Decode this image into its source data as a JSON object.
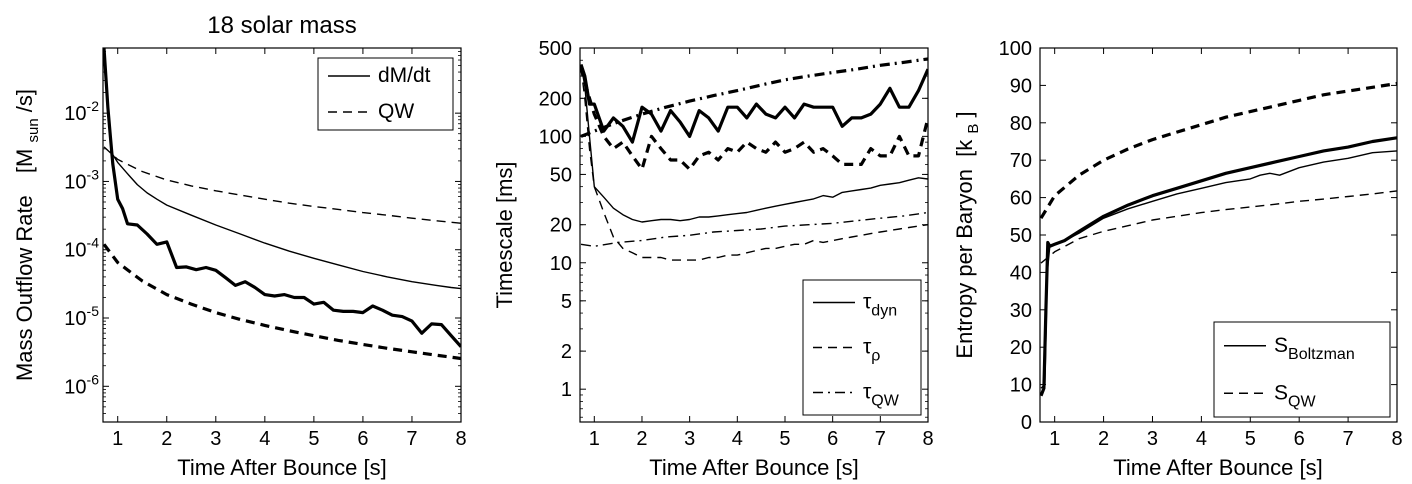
{
  "chart_data": [
    {
      "type": "line",
      "title": "18 solar mass",
      "xlabel": "Time After Bounce [s]",
      "ylabel": "Mass Outflow Rate",
      "ylabel_unit": "[M",
      "ylabel_unit_sub": "sun",
      "ylabel_unit_tail": "/s]",
      "yscale": "log",
      "xlim": [
        0.7,
        8
      ],
      "ylim": [
        3e-07,
        0.09
      ],
      "xticks": [
        1,
        2,
        3,
        4,
        5,
        6,
        7,
        8
      ],
      "xtick_labels": [
        "1",
        "2",
        "3",
        "4",
        "5",
        "6",
        "7",
        "8"
      ],
      "yticks": [
        1e-06,
        1e-05,
        0.0001,
        0.001,
        0.01
      ],
      "ytick_labels": [
        {
          "base": "10",
          "exp": "-6"
        },
        {
          "base": "10",
          "exp": "-5"
        },
        {
          "base": "10",
          "exp": "-4"
        },
        {
          "base": "10",
          "exp": "-3"
        },
        {
          "base": "10",
          "exp": "-2"
        }
      ],
      "legend": {
        "position": "top-right",
        "entries": [
          {
            "label": "dM/dt",
            "style": "solid"
          },
          {
            "label": "QW",
            "style": "dashed"
          }
        ]
      },
      "series": [
        {
          "name": "dM/dt (thick)",
          "style": "solid",
          "weight": "thick",
          "x": [
            0.72,
            0.8,
            0.85,
            0.9,
            1.0,
            1.1,
            1.2,
            1.4,
            1.6,
            1.8,
            2.0,
            2.2,
            2.4,
            2.6,
            2.8,
            3.0,
            3.2,
            3.4,
            3.6,
            3.8,
            4.0,
            4.2,
            4.4,
            4.6,
            4.8,
            5.0,
            5.2,
            5.4,
            5.6,
            5.8,
            6.0,
            6.2,
            6.4,
            6.6,
            6.8,
            7.0,
            7.2,
            7.4,
            7.6,
            7.8,
            8.0
          ],
          "y": [
            0.09,
            0.012,
            0.0045,
            0.0018,
            0.00055,
            0.0004,
            0.00024,
            0.00023,
            0.00017,
            0.00012,
            0.00013,
            5.5e-05,
            5.6e-05,
            5.1e-05,
            5.5e-05,
            5e-05,
            3.9e-05,
            3e-05,
            3.4e-05,
            2.8e-05,
            2.2e-05,
            2.1e-05,
            2.2e-05,
            2e-05,
            2e-05,
            1.6e-05,
            1.7e-05,
            1.3e-05,
            1.25e-05,
            1.25e-05,
            1.2e-05,
            1.5e-05,
            1.3e-05,
            1.1e-05,
            1.05e-05,
            9e-06,
            6e-06,
            8.2e-06,
            8e-06,
            5.5e-06,
            3.8e-06
          ]
        },
        {
          "name": "dM/dt (thin)",
          "style": "solid",
          "weight": "thin",
          "x": [
            0.85,
            1.0,
            1.2,
            1.4,
            1.6,
            1.8,
            2.0,
            2.5,
            3.0,
            3.5,
            4.0,
            4.5,
            5.0,
            5.5,
            6.0,
            6.5,
            7.0,
            7.5,
            7.8,
            8.0
          ],
          "y": [
            0.0028,
            0.0019,
            0.0013,
            0.0009,
            0.00068,
            0.00055,
            0.00045,
            0.00032,
            0.00023,
            0.00017,
            0.000125,
            9.5e-05,
            7.5e-05,
            6e-05,
            4.8e-05,
            4e-05,
            3.4e-05,
            3e-05,
            2.8e-05,
            2.7e-05
          ]
        },
        {
          "name": "QW (thin)",
          "style": "dashed",
          "weight": "thin",
          "x": [
            0.72,
            1.0,
            1.5,
            2.0,
            2.5,
            3.0,
            3.5,
            4.0,
            4.5,
            5.0,
            5.5,
            6.0,
            6.5,
            7.0,
            7.5,
            8.0
          ],
          "y": [
            0.0032,
            0.0021,
            0.0014,
            0.00105,
            0.00086,
            0.00073,
            0.00063,
            0.00055,
            0.00048,
            0.00043,
            0.00039,
            0.00035,
            0.00032,
            0.00029,
            0.000265,
            0.000245
          ]
        },
        {
          "name": "QW (thick)",
          "style": "dashed",
          "weight": "thick",
          "x": [
            0.72,
            1.0,
            1.5,
            2.0,
            2.5,
            3.0,
            3.5,
            4.0,
            4.5,
            5.0,
            5.5,
            6.0,
            6.5,
            7.0,
            7.5,
            8.0
          ],
          "y": [
            0.00012,
            6.5e-05,
            3.5e-05,
            2.2e-05,
            1.6e-05,
            1.2e-05,
            9.5e-06,
            7.8e-06,
            6.5e-06,
            5.5e-06,
            4.7e-06,
            4.1e-06,
            3.6e-06,
            3.2e-06,
            2.85e-06,
            2.55e-06
          ]
        }
      ]
    },
    {
      "type": "line",
      "xlabel": "Time After Bounce [s]",
      "ylabel": "Timescale [ms]",
      "yscale": "log",
      "xlim": [
        0.7,
        8
      ],
      "ylim": [
        0.55,
        500
      ],
      "xticks": [
        1,
        2,
        3,
        4,
        5,
        6,
        7,
        8
      ],
      "xtick_labels": [
        "1",
        "2",
        "3",
        "4",
        "5",
        "6",
        "7",
        "8"
      ],
      "yticks": [
        1,
        2,
        5,
        10,
        20,
        50,
        100,
        200,
        500
      ],
      "ytick_labels": [
        "1",
        "2",
        "5",
        "10",
        "20",
        "50",
        "100",
        "200",
        "500"
      ],
      "legend": {
        "position": "bottom-right",
        "entries": [
          {
            "label": "τ",
            "sub": "dyn",
            "style": "solid"
          },
          {
            "label": "τ",
            "sub": "ρ",
            "style": "dashed"
          },
          {
            "label": "τ",
            "sub": "QW",
            "style": "dashdot"
          }
        ]
      },
      "series": [
        {
          "name": "τdyn (thick)",
          "style": "solid",
          "weight": "thick",
          "x": [
            0.72,
            0.8,
            0.9,
            1.0,
            1.2,
            1.4,
            1.6,
            1.8,
            2.0,
            2.2,
            2.4,
            2.6,
            2.8,
            3.0,
            3.2,
            3.4,
            3.6,
            3.8,
            4.0,
            4.2,
            4.4,
            4.6,
            4.8,
            5.0,
            5.2,
            5.4,
            5.6,
            5.8,
            6.0,
            6.2,
            6.4,
            6.6,
            6.8,
            7.0,
            7.2,
            7.4,
            7.6,
            7.8,
            8.0
          ],
          "y": [
            370,
            300,
            180,
            180,
            110,
            140,
            120,
            90,
            170,
            150,
            110,
            160,
            130,
            100,
            160,
            140,
            110,
            170,
            170,
            140,
            180,
            150,
            140,
            170,
            140,
            180,
            170,
            170,
            170,
            120,
            140,
            140,
            150,
            180,
            240,
            170,
            170,
            230,
            340
          ]
        },
        {
          "name": "τρ (thick)",
          "style": "dashed",
          "weight": "thick",
          "x": [
            0.72,
            0.8,
            0.9,
            1.0,
            1.2,
            1.4,
            1.6,
            1.8,
            2.0,
            2.2,
            2.4,
            2.6,
            2.8,
            3.0,
            3.2,
            3.4,
            3.6,
            3.8,
            4.0,
            4.2,
            4.4,
            4.6,
            4.8,
            5.0,
            5.2,
            5.4,
            5.6,
            5.8,
            6.0,
            6.2,
            6.4,
            6.6,
            6.8,
            7.0,
            7.2,
            7.4,
            7.6,
            7.8,
            8.0
          ],
          "y": [
            350,
            270,
            200,
            150,
            100,
            80,
            90,
            70,
            55,
            100,
            80,
            65,
            65,
            55,
            70,
            75,
            65,
            80,
            75,
            90,
            80,
            75,
            90,
            75,
            80,
            90,
            75,
            80,
            70,
            60,
            60,
            60,
            80,
            70,
            70,
            100,
            70,
            70,
            140
          ]
        },
        {
          "name": "τQW (thick)",
          "style": "dashdot",
          "weight": "thick",
          "x": [
            0.72,
            1.0,
            1.5,
            2.0,
            2.5,
            3.0,
            3.5,
            4.0,
            4.5,
            5.0,
            5.5,
            6.0,
            6.5,
            7.0,
            7.5,
            8.0
          ],
          "y": [
            100,
            110,
            130,
            150,
            170,
            190,
            210,
            230,
            255,
            280,
            300,
            320,
            340,
            365,
            385,
            410
          ]
        },
        {
          "name": "τdyn (thin)",
          "style": "solid",
          "weight": "thin",
          "x": [
            0.72,
            0.8,
            0.9,
            1.0,
            1.2,
            1.4,
            1.6,
            1.8,
            2.0,
            2.2,
            2.4,
            2.6,
            2.8,
            3.0,
            3.2,
            3.4,
            3.6,
            3.8,
            4.0,
            4.2,
            4.4,
            4.6,
            4.8,
            5.0,
            5.2,
            5.4,
            5.6,
            5.8,
            6.0,
            6.2,
            6.4,
            6.6,
            6.8,
            7.0,
            7.2,
            7.4,
            7.6,
            7.8,
            8.0
          ],
          "y": [
            370,
            250,
            100,
            40,
            33,
            27,
            24,
            22,
            21,
            21.5,
            22,
            22,
            21.5,
            22,
            23,
            23,
            23.5,
            24,
            24.5,
            25,
            26,
            27,
            28,
            29,
            30,
            31,
            32,
            34,
            33,
            36,
            37,
            38,
            39,
            41,
            42,
            43,
            45,
            47,
            46
          ]
        },
        {
          "name": "τρ (thin)",
          "style": "dashed",
          "weight": "thin",
          "x": [
            0.72,
            0.8,
            0.9,
            1.0,
            1.2,
            1.4,
            1.6,
            1.8,
            2.0,
            2.2,
            2.4,
            2.6,
            2.8,
            3.0,
            3.2,
            3.4,
            3.6,
            3.8,
            4.0,
            4.2,
            4.4,
            4.6,
            4.8,
            5.0,
            5.2,
            5.4,
            5.6,
            5.8,
            6.0,
            6.2,
            6.4,
            6.6,
            6.8,
            7.0,
            7.2,
            7.4,
            7.6,
            7.8,
            8.0
          ],
          "y": [
            350,
            200,
            80,
            40,
            25,
            16,
            13,
            12,
            11,
            11,
            11,
            10.5,
            10.5,
            10.5,
            10.5,
            11,
            11,
            11.5,
            11.5,
            12,
            12.5,
            13,
            13,
            13.5,
            14,
            14,
            15,
            14.5,
            15,
            15.5,
            16,
            16.5,
            17,
            17.5,
            18,
            18.5,
            19,
            19.5,
            20
          ]
        },
        {
          "name": "τQW (thin)",
          "style": "dashdot",
          "weight": "thin",
          "x": [
            0.72,
            1.0,
            1.5,
            2.0,
            2.5,
            3.0,
            3.5,
            4.0,
            4.5,
            5.0,
            5.5,
            6.0,
            6.5,
            7.0,
            7.5,
            8.0
          ],
          "y": [
            14,
            13.5,
            14.5,
            15,
            16,
            16.5,
            17.5,
            18,
            18.5,
            19.5,
            20,
            20.5,
            21.5,
            22.5,
            23.5,
            25
          ]
        }
      ]
    },
    {
      "type": "line",
      "xlabel": "Time After Bounce [s]",
      "ylabel": "Entropy per Baryon",
      "ylabel_unit": "[k",
      "ylabel_unit_sub": "B",
      "ylabel_unit_tail": "]",
      "yscale": "linear",
      "xlim": [
        0.7,
        8
      ],
      "ylim": [
        0,
        100
      ],
      "xticks": [
        1,
        2,
        3,
        4,
        5,
        6,
        7,
        8
      ],
      "xtick_labels": [
        "1",
        "2",
        "3",
        "4",
        "5",
        "6",
        "7",
        "8"
      ],
      "yticks": [
        0,
        10,
        20,
        30,
        40,
        50,
        60,
        70,
        80,
        90,
        100
      ],
      "ytick_labels": [
        "0",
        "10",
        "20",
        "30",
        "40",
        "50",
        "60",
        "70",
        "80",
        "90",
        "100"
      ],
      "legend": {
        "position": "bottom-right",
        "entries": [
          {
            "label": "S",
            "sub": "Boltzman",
            "style": "solid"
          },
          {
            "label": "S",
            "sub": "QW",
            "style": "dashed"
          }
        ]
      },
      "series": [
        {
          "name": "SBoltzman (thick)",
          "style": "solid",
          "weight": "thick",
          "x": [
            0.72,
            0.78,
            0.82,
            0.86,
            0.9,
            1.0,
            1.2,
            1.5,
            2.0,
            2.5,
            3.0,
            3.5,
            4.0,
            4.5,
            5.0,
            5.5,
            6.0,
            6.5,
            7.0,
            7.5,
            8.0
          ],
          "y": [
            7,
            9,
            30,
            48,
            47,
            47.5,
            48.5,
            51,
            55,
            58,
            60.5,
            62.5,
            64.5,
            66.5,
            68,
            69.5,
            71,
            72.5,
            73.5,
            75,
            76
          ]
        },
        {
          "name": "SBoltzman (thin)",
          "style": "solid",
          "weight": "thin",
          "x": [
            0.72,
            0.8,
            0.85,
            0.9,
            1.0,
            1.2,
            1.5,
            2.0,
            2.5,
            3.0,
            3.5,
            4.0,
            4.5,
            5.0,
            5.2,
            5.4,
            5.6,
            6.0,
            6.5,
            7.0,
            7.5,
            8.0
          ],
          "y": [
            9,
            10,
            40,
            47,
            47.5,
            48.5,
            50.5,
            54.5,
            57,
            59,
            61,
            62.5,
            64,
            65,
            66,
            66.5,
            66,
            68,
            69.5,
            70.5,
            72,
            72.5
          ]
        },
        {
          "name": "SQW (thick)",
          "style": "dashed",
          "weight": "thick",
          "x": [
            0.72,
            1.0,
            1.5,
            2.0,
            2.5,
            3.0,
            3.5,
            4.0,
            4.5,
            5.0,
            5.5,
            6.0,
            6.5,
            7.0,
            7.5,
            8.0
          ],
          "y": [
            54.5,
            60.5,
            66,
            70,
            73,
            75.5,
            77.5,
            79.5,
            81.5,
            83,
            84.5,
            86,
            87.5,
            88.5,
            89.5,
            90.5
          ]
        },
        {
          "name": "SQW (thin)",
          "style": "dashed",
          "weight": "thin",
          "x": [
            0.72,
            1.0,
            1.5,
            2.0,
            2.5,
            3.0,
            3.5,
            4.0,
            4.5,
            5.0,
            5.5,
            6.0,
            6.5,
            7.0,
            7.5,
            8.0
          ],
          "y": [
            42.5,
            45.5,
            49,
            51,
            52.5,
            54,
            55,
            56,
            56.8,
            57.5,
            58.2,
            59,
            59.6,
            60.3,
            61,
            61.8
          ]
        }
      ]
    }
  ]
}
